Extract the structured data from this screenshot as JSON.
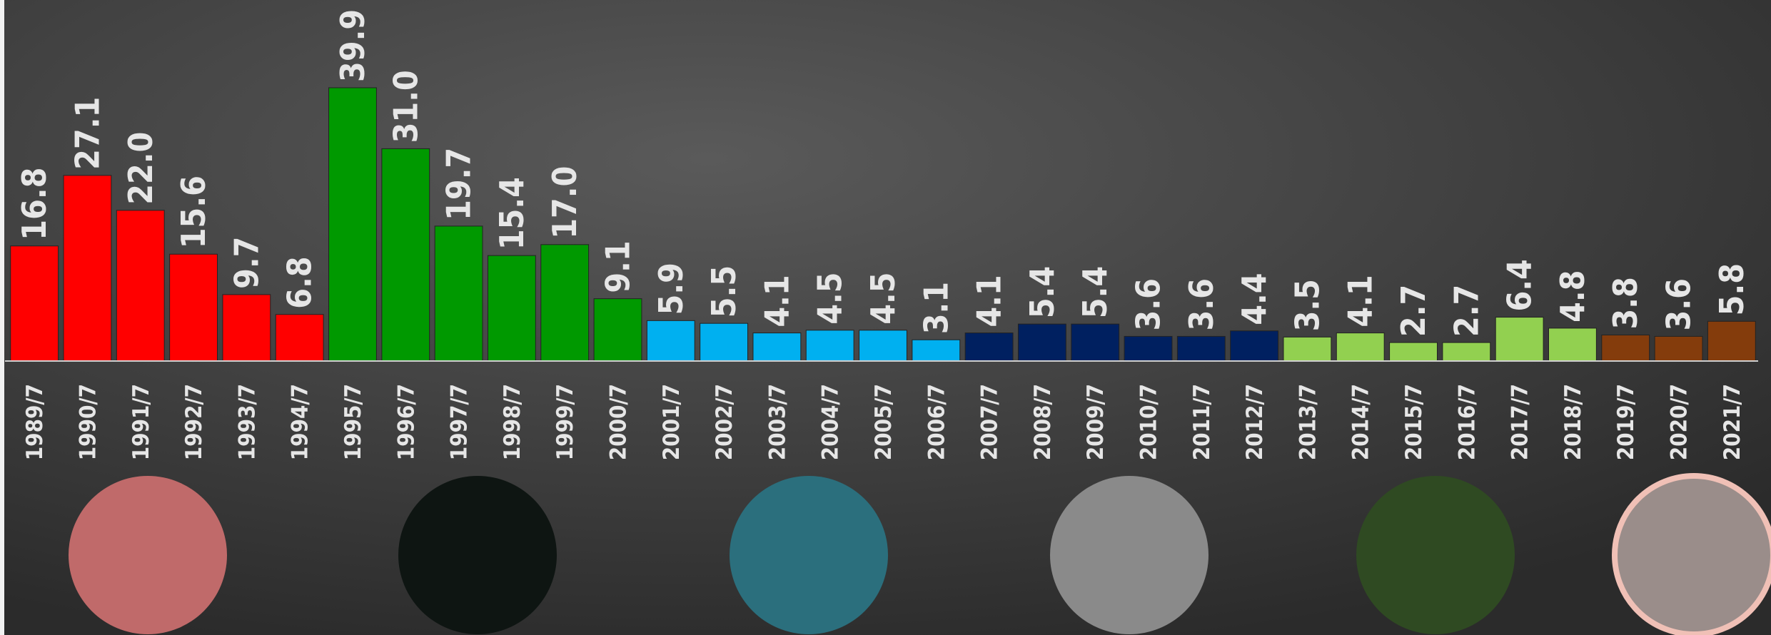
{
  "chart_data": {
    "type": "bar",
    "categories": [
      "1989/7",
      "1990/7",
      "1991/7",
      "1992/7",
      "1993/7",
      "1994/7",
      "1995/7",
      "1996/7",
      "1997/7",
      "1998/7",
      "1999/7",
      "2000/7",
      "2001/7",
      "2002/7",
      "2003/7",
      "2004/7",
      "2005/7",
      "2006/7",
      "2007/7",
      "2008/7",
      "2009/7",
      "2010/7",
      "2011/7",
      "2012/7",
      "2013/7",
      "2014/7",
      "2015/7",
      "2016/7",
      "2017/7",
      "2018/7",
      "2019/7",
      "2020/7",
      "2021/7"
    ],
    "values": [
      16.8,
      27.1,
      22,
      15.6,
      9.7,
      6.8,
      39.9,
      31,
      19.7,
      15.4,
      17,
      9.1,
      5.9,
      5.5,
      4.1,
      4.5,
      4.5,
      3.1,
      4.1,
      5.4,
      5.4,
      3.6,
      3.6,
      4.4,
      3.5,
      4.1,
      2.7,
      2.7,
      6.4,
      4.8,
      3.8,
      3.6,
      5.8
    ],
    "value_labels": [
      "16.8",
      "27.1",
      "22.0",
      "15.6",
      "9.7",
      "6.8",
      "39.9",
      "31.0",
      "19.7",
      "15.4",
      "17.0",
      "9.1",
      "5.9",
      "5.5",
      "4.1",
      "4.5",
      "4.5",
      "3.1",
      "4.1",
      "5.4",
      "5.4",
      "3.6",
      "3.6",
      "4.4",
      "3.5",
      "4.1",
      "2.7",
      "2.7",
      "6.4",
      "4.8",
      "3.8",
      "3.6",
      "5.8"
    ],
    "colors": [
      "#ff0000",
      "#ff0000",
      "#ff0000",
      "#ff0000",
      "#ff0000",
      "#ff0000",
      "#009900",
      "#009900",
      "#009900",
      "#009900",
      "#009900",
      "#009900",
      "#00b0f0",
      "#00b0f0",
      "#00b0f0",
      "#00b0f0",
      "#00b0f0",
      "#00b0f0",
      "#002060",
      "#002060",
      "#002060",
      "#002060",
      "#002060",
      "#002060",
      "#92d050",
      "#92d050",
      "#92d050",
      "#92d050",
      "#92d050",
      "#92d050",
      "#843c0c",
      "#843c0c",
      "#843c0c"
    ]
  }
}
